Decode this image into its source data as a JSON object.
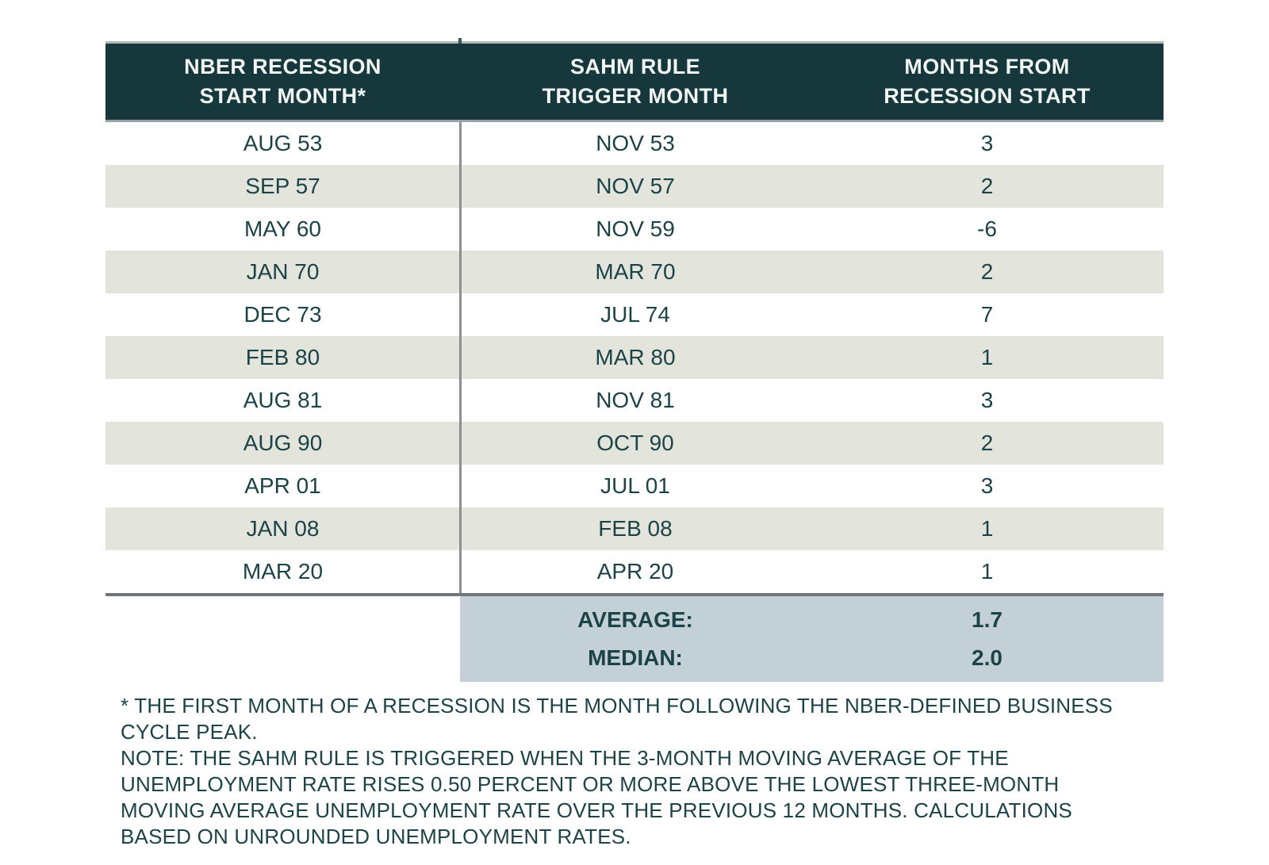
{
  "chart_data": {
    "type": "table",
    "columns": [
      {
        "line1": "NBER RECESSION",
        "line2": "START MONTH*"
      },
      {
        "line1": "SAHM RULE",
        "line2": "TRIGGER MONTH"
      },
      {
        "line1": "MONTHS FROM",
        "line2": "RECESSION START"
      }
    ],
    "rows": [
      {
        "start": "AUG 53",
        "trigger": "NOV 53",
        "months": "3"
      },
      {
        "start": "SEP 57",
        "trigger": "NOV 57",
        "months": "2"
      },
      {
        "start": "MAY 60",
        "trigger": "NOV 59",
        "months": "-6"
      },
      {
        "start": "JAN 70",
        "trigger": "MAR 70",
        "months": "2"
      },
      {
        "start": "DEC 73",
        "trigger": "JUL 74",
        "months": "7"
      },
      {
        "start": "FEB 80",
        "trigger": "MAR 80",
        "months": "1"
      },
      {
        "start": "AUG 81",
        "trigger": "NOV 81",
        "months": "3"
      },
      {
        "start": "AUG 90",
        "trigger": "OCT 90",
        "months": "2"
      },
      {
        "start": "APR 01",
        "trigger": "JUL 01",
        "months": "3"
      },
      {
        "start": "JAN 08",
        "trigger": "FEB 08",
        "months": "1"
      },
      {
        "start": "MAR 20",
        "trigger": "APR 20",
        "months": "1"
      }
    ],
    "summary": [
      {
        "label": "AVERAGE:",
        "value": "1.7"
      },
      {
        "label": "MEDIAN:",
        "value": "2.0"
      }
    ],
    "footnotes": [
      "* THE FIRST MONTH OF A RECESSION IS THE MONTH FOLLOWING THE NBER-DEFINED BUSINESS CYCLE PEAK.",
      "NOTE: THE SAHM RULE IS TRIGGERED WHEN THE 3-MONTH MOVING AVERAGE OF THE UNEMPLOYMENT RATE RISES 0.50 PERCENT OR MORE ABOVE THE LOWEST THREE-MONTH MOVING AVERAGE UNEMPLOYMENT RATE OVER THE PREVIOUS 12 MONTHS. CALCULATIONS BASED ON UNROUNDED UNEMPLOYMENT RATES."
    ],
    "layout": {
      "legend_position": "none",
      "grid": "off"
    },
    "colors": {
      "header_bg": "#16383c",
      "header_text": "#f2f6f4",
      "body_text": "#1c4347",
      "alt_row_bg": "#e3e4dc",
      "summary_bg": "#c3d0d8",
      "divider": "#8a8f8f",
      "rule": "#6f7578"
    }
  }
}
